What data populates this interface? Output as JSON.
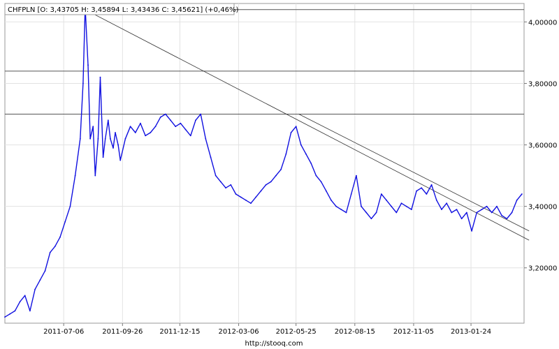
{
  "header": {
    "title": "CHFPLN [O: 3,43705  H: 3,45894  L: 3,43436  C: 3,45621] (+0,46%)"
  },
  "footer": {
    "source": "http://stooq.com"
  },
  "colors": {
    "series": "#1010e0",
    "grid": "#e2e2e2",
    "frame": "#999999",
    "level_lines": "#555555",
    "trend_lines": "#333333"
  },
  "chart_data": {
    "type": "line",
    "title": "CHFPLN [O: 3,43705  H: 3,45894  L: 3,43436  C: 3,45621] (+0,46%)",
    "xlabel": "",
    "ylabel": "",
    "x_axis": {
      "type": "date",
      "range": [
        "2011-04-15",
        "2013-04-08"
      ],
      "ticks": [
        "2011-07-06",
        "2011-09-26",
        "2011-12-15",
        "2012-03-06",
        "2012-05-25",
        "2012-08-15",
        "2012-11-05",
        "2013-01-24"
      ]
    },
    "y_axis": {
      "range": [
        3.02,
        4.06
      ],
      "ticks": [
        3.2,
        3.4,
        3.6,
        3.8,
        4.0
      ],
      "tick_labels": [
        "3,20000",
        "3,40000",
        "3,60000",
        "3,80000",
        "4,00000"
      ],
      "position": "right"
    },
    "grid": true,
    "series": [
      {
        "x": [
          "2011-04-15",
          "2011-04-22",
          "2011-04-29",
          "2011-05-06",
          "2011-05-13",
          "2011-05-20",
          "2011-05-27",
          "2011-06-03",
          "2011-06-10",
          "2011-06-17",
          "2011-06-24",
          "2011-07-01",
          "2011-07-08",
          "2011-07-15",
          "2011-07-22",
          "2011-07-29",
          "2011-08-02",
          "2011-08-05",
          "2011-08-09",
          "2011-08-12",
          "2011-08-16",
          "2011-08-19",
          "2011-08-23",
          "2011-08-26",
          "2011-08-30",
          "2011-09-02",
          "2011-09-06",
          "2011-09-09",
          "2011-09-13",
          "2011-09-16",
          "2011-09-20",
          "2011-09-23",
          "2011-09-30",
          "2011-10-07",
          "2011-10-14",
          "2011-10-21",
          "2011-10-28",
          "2011-11-04",
          "2011-11-11",
          "2011-11-18",
          "2011-11-25",
          "2011-12-02",
          "2011-12-09",
          "2011-12-16",
          "2011-12-23",
          "2011-12-30",
          "2012-01-06",
          "2012-01-13",
          "2012-01-20",
          "2012-01-27",
          "2012-02-03",
          "2012-02-10",
          "2012-02-17",
          "2012-02-24",
          "2012-03-02",
          "2012-03-09",
          "2012-03-16",
          "2012-03-23",
          "2012-03-30",
          "2012-04-06",
          "2012-04-13",
          "2012-04-20",
          "2012-04-27",
          "2012-05-04",
          "2012-05-11",
          "2012-05-18",
          "2012-05-25",
          "2012-06-01",
          "2012-06-08",
          "2012-06-15",
          "2012-06-22",
          "2012-06-29",
          "2012-07-06",
          "2012-07-13",
          "2012-07-20",
          "2012-07-27",
          "2012-08-03",
          "2012-08-10",
          "2012-08-17",
          "2012-08-24",
          "2012-08-31",
          "2012-09-07",
          "2012-09-14",
          "2012-09-21",
          "2012-09-28",
          "2012-10-05",
          "2012-10-12",
          "2012-10-19",
          "2012-10-26",
          "2012-11-02",
          "2012-11-09",
          "2012-11-16",
          "2012-11-23",
          "2012-11-30",
          "2012-12-07",
          "2012-12-14",
          "2012-12-21",
          "2012-12-28",
          "2013-01-04",
          "2013-01-11",
          "2013-01-18",
          "2013-01-25",
          "2013-02-01",
          "2013-02-08",
          "2013-02-15",
          "2013-02-22",
          "2013-03-01",
          "2013-03-08",
          "2013-03-15",
          "2013-03-22",
          "2013-03-29",
          "2013-04-05"
        ],
        "values": [
          3.04,
          3.05,
          3.06,
          3.09,
          3.11,
          3.06,
          3.13,
          3.16,
          3.19,
          3.25,
          3.27,
          3.3,
          3.35,
          3.4,
          3.5,
          3.62,
          3.8,
          4.05,
          3.86,
          3.62,
          3.66,
          3.5,
          3.62,
          3.82,
          3.56,
          3.62,
          3.68,
          3.62,
          3.59,
          3.64,
          3.6,
          3.55,
          3.62,
          3.66,
          3.64,
          3.67,
          3.63,
          3.64,
          3.66,
          3.69,
          3.7,
          3.68,
          3.66,
          3.67,
          3.65,
          3.63,
          3.68,
          3.7,
          3.62,
          3.56,
          3.5,
          3.48,
          3.46,
          3.47,
          3.44,
          3.43,
          3.42,
          3.41,
          3.43,
          3.45,
          3.47,
          3.48,
          3.5,
          3.52,
          3.57,
          3.64,
          3.66,
          3.6,
          3.57,
          3.54,
          3.5,
          3.48,
          3.45,
          3.42,
          3.4,
          3.39,
          3.38,
          3.44,
          3.5,
          3.4,
          3.38,
          3.36,
          3.38,
          3.44,
          3.42,
          3.4,
          3.38,
          3.41,
          3.4,
          3.39,
          3.45,
          3.46,
          3.44,
          3.47,
          3.42,
          3.39,
          3.41,
          3.38,
          3.39,
          3.36,
          3.38,
          3.32,
          3.38,
          3.39,
          3.4,
          3.38,
          3.4,
          3.37,
          3.36,
          3.38,
          3.42,
          3.44
        ]
      }
    ],
    "horizontal_lines": [
      4.04,
      3.84,
      3.7
    ],
    "trend_lines": [
      {
        "from": {
          "x": "2011-08-05",
          "y": 4.04
        },
        "to": {
          "x": "2013-04-15",
          "y": 3.29
        }
      },
      {
        "from": {
          "x": "2012-05-29",
          "y": 3.7
        },
        "to": {
          "x": "2013-04-15",
          "y": 3.32
        }
      }
    ]
  }
}
